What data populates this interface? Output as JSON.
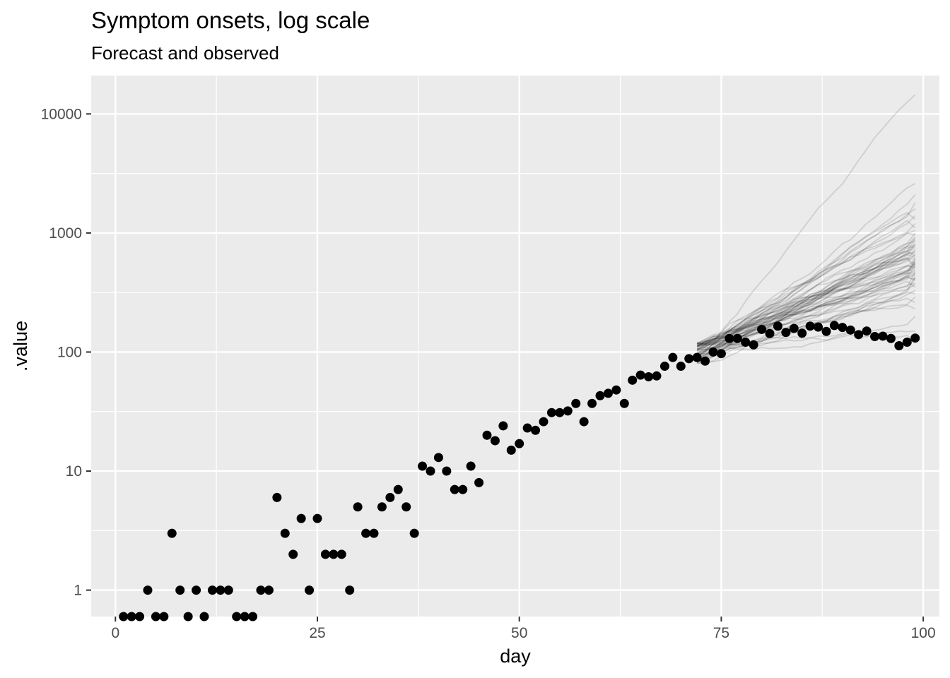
{
  "chart_data": {
    "type": "scatter",
    "title": "Symptom onsets, log scale",
    "subtitle": "Forecast and observed",
    "xlabel": "day",
    "ylabel": ".value",
    "xlim": [
      -3,
      102
    ],
    "ylim": [
      0.6,
      21000
    ],
    "y_scale": "log10",
    "x_ticks": [
      0,
      25,
      50,
      75,
      100
    ],
    "x_tick_labels": [
      "0",
      "25",
      "50",
      "75",
      "100"
    ],
    "y_ticks": [
      1,
      10,
      100,
      1000,
      10000
    ],
    "y_tick_labels": [
      "1",
      "10",
      "100",
      "1000",
      "10000"
    ],
    "grid": true,
    "colors": {
      "panel": "#ebebeb",
      "grid": "#ffffff",
      "points": "#000000",
      "forecast": "#000000"
    },
    "observed": {
      "x": [
        1,
        2,
        3,
        4,
        5,
        6,
        7,
        8,
        9,
        10,
        11,
        12,
        13,
        14,
        15,
        16,
        17,
        18,
        19,
        20,
        21,
        22,
        23,
        24,
        25,
        26,
        27,
        28,
        29,
        30,
        31,
        32,
        33,
        34,
        35,
        36,
        37,
        38,
        39,
        40,
        41,
        42,
        43,
        44,
        45,
        46,
        47,
        48,
        49,
        50,
        51,
        52,
        53,
        54,
        55,
        56,
        57,
        58,
        59,
        60,
        61,
        62,
        63,
        64,
        65,
        66,
        67,
        68,
        69,
        70,
        71,
        72,
        73,
        74,
        75,
        76,
        77,
        78,
        79,
        80,
        81,
        82,
        83,
        84,
        85,
        86,
        87,
        88,
        89,
        90,
        91,
        92,
        93,
        94,
        95,
        96,
        97,
        98,
        99
      ],
      "y": [
        0.6,
        0.6,
        0.6,
        1,
        0.6,
        0.6,
        3,
        1,
        0.6,
        1,
        0.6,
        1,
        1,
        1,
        0.6,
        0.6,
        0.6,
        1,
        1,
        6,
        3,
        2,
        4,
        1,
        4,
        2,
        2,
        2,
        1,
        5,
        3,
        3,
        5,
        6,
        7,
        5,
        3,
        11,
        10,
        13,
        10,
        7,
        7,
        11,
        8,
        20,
        18,
        24,
        15,
        17,
        23,
        22,
        26,
        31,
        31,
        32,
        37,
        26,
        37,
        43,
        45,
        48,
        37,
        58,
        64,
        62,
        63,
        76,
        90,
        76,
        88,
        90,
        84,
        100,
        97,
        130,
        130,
        121,
        115,
        155,
        143,
        165,
        146,
        158,
        144,
        165,
        162,
        149,
        167,
        161,
        153,
        140,
        150,
        135,
        136,
        130,
        113,
        121,
        131
      ]
    },
    "forecast": {
      "start_day": 72,
      "end_day": 99,
      "start_value": 100,
      "n_draws": 60,
      "end_values": [
        120,
        150,
        200,
        230,
        260,
        290,
        310,
        330,
        350,
        370,
        380,
        400,
        410,
        420,
        430,
        440,
        450,
        460,
        470,
        480,
        490,
        500,
        510,
        520,
        530,
        540,
        550,
        560,
        570,
        580,
        590,
        600,
        610,
        620,
        640,
        660,
        680,
        700,
        720,
        740,
        760,
        780,
        800,
        820,
        850,
        880,
        900,
        930,
        960,
        1000,
        1050,
        1100,
        1200,
        1300,
        1400,
        1600,
        1800,
        2100,
        2600,
        14500
      ]
    }
  }
}
